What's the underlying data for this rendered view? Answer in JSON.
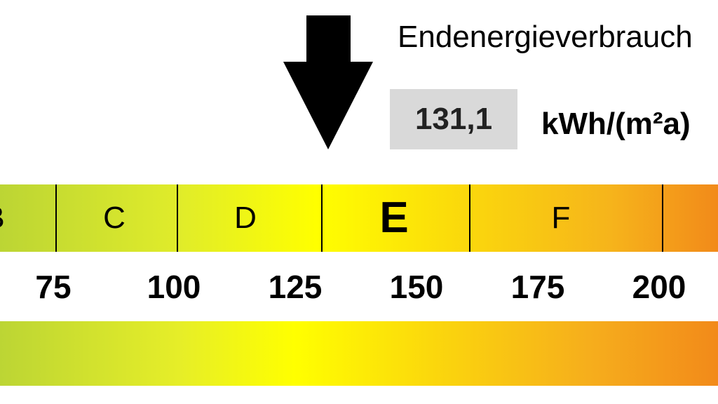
{
  "header": {
    "title": "Endenergieverbrauch",
    "value": "131,1",
    "unit": "kWh/(m²a)"
  },
  "indicator": {
    "icon": "arrow-down-icon",
    "value": 131.1
  },
  "scale": {
    "classes": [
      "B",
      "C",
      "D",
      "E",
      "F"
    ],
    "active_class": "E",
    "ticks": [
      "75",
      "100",
      "125",
      "150",
      "175",
      "200"
    ]
  },
  "colors": {
    "green": "#bcd534",
    "yellow": "#ffff00",
    "orange": "#f28a1a",
    "value_box": "#d9d9d9"
  }
}
